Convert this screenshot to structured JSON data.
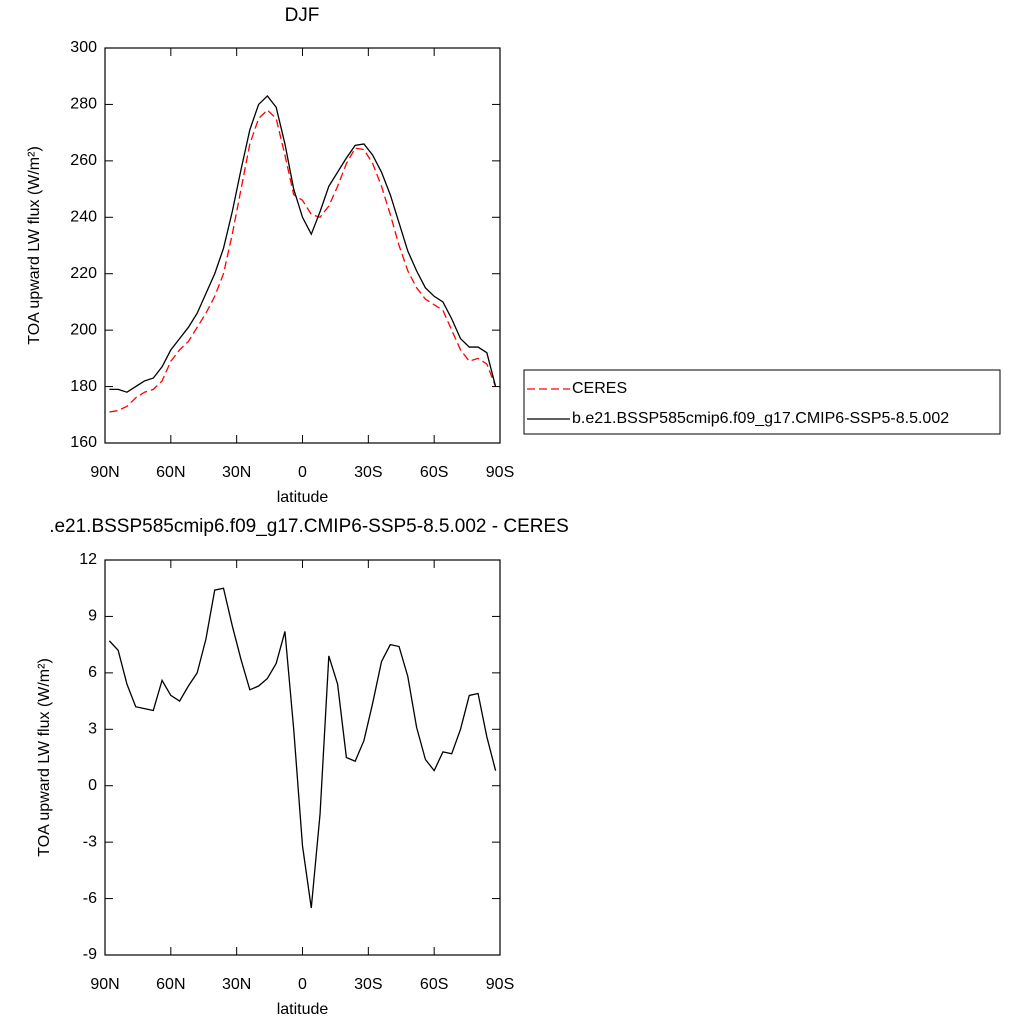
{
  "chart_data": [
    {
      "type": "line",
      "title": "DJF",
      "xlabel": "latitude",
      "ylabel": "TOA upward LW flux (W/m²)",
      "x": [
        88,
        84,
        80,
        76,
        72,
        68,
        64,
        60,
        56,
        52,
        48,
        44,
        40,
        36,
        32,
        28,
        24,
        20,
        16,
        12,
        8,
        4,
        0,
        -4,
        -8,
        -12,
        -16,
        -20,
        -24,
        -28,
        -32,
        -36,
        -40,
        -44,
        -48,
        -52,
        -56,
        -60,
        -64,
        -68,
        -72,
        -76,
        -80,
        -84,
        -88
      ],
      "series": [
        {
          "name": "CERES",
          "color": "#ff0000",
          "dash": true,
          "values": [
            171,
            171.5,
            173,
            176,
            178,
            179,
            182,
            189,
            193,
            196,
            201,
            206,
            212,
            220,
            234,
            250,
            266,
            275,
            278,
            275,
            262,
            248,
            246,
            241,
            240,
            244,
            251,
            259,
            264.5,
            264,
            259,
            251,
            241,
            230,
            221,
            215,
            211,
            209,
            207,
            200,
            193,
            189,
            190,
            188,
            180
          ]
        },
        {
          "name": "b.e21.BSSP585cmip6.f09_g17.CMIP6-SSP5-8.5.002",
          "color": "#000000",
          "dash": false,
          "values": [
            179,
            179,
            178,
            180,
            182,
            183,
            187,
            193,
            197,
            201,
            206,
            213,
            220,
            229,
            242,
            257,
            271,
            280,
            283,
            279,
            266,
            250,
            240,
            234,
            242,
            251,
            256,
            261,
            265.5,
            266,
            262,
            256,
            248,
            238,
            228,
            221,
            215,
            212,
            210,
            204,
            197,
            194,
            194,
            192,
            180
          ]
        }
      ],
      "xlim": [
        90,
        -90
      ],
      "xticks": [
        {
          "value": 90,
          "label": "90N"
        },
        {
          "value": 60,
          "label": "60N"
        },
        {
          "value": 30,
          "label": "30N"
        },
        0,
        {
          "value": -30,
          "label": "30S"
        },
        {
          "value": -60,
          "label": "60S"
        },
        {
          "value": -90,
          "label": "90S"
        }
      ],
      "ylim": [
        160,
        300
      ],
      "yticks": [
        160,
        180,
        200,
        220,
        240,
        260,
        280,
        300
      ]
    },
    {
      "type": "line",
      "title": ".e21.BSSP585cmip6.f09_g17.CMIP6-SSP5-8.5.002 - CERES",
      "xlabel": "latitude",
      "ylabel": "TOA upward LW flux (W/m²)",
      "x": [
        88,
        84,
        80,
        76,
        72,
        68,
        64,
        60,
        56,
        52,
        48,
        44,
        40,
        36,
        32,
        28,
        24,
        20,
        16,
        12,
        8,
        4,
        0,
        -4,
        -8,
        -12,
        -16,
        -20,
        -24,
        -28,
        -32,
        -36,
        -40,
        -44,
        -48,
        -52,
        -56,
        -60,
        -64,
        -68,
        -72,
        -76,
        -80,
        -84,
        -88
      ],
      "series": [
        {
          "color": "#000000",
          "dash": false,
          "values": [
            7.7,
            7.2,
            5.4,
            4.2,
            4.1,
            4.0,
            5.6,
            4.8,
            4.5,
            5.3,
            6.0,
            7.8,
            10.4,
            10.5,
            8.5,
            6.7,
            5.1,
            5.3,
            5.7,
            6.5,
            8.2,
            3.0,
            -3.2,
            -6.5,
            -1.5,
            6.9,
            5.4,
            1.5,
            1.3,
            2.4,
            4.4,
            6.6,
            7.5,
            7.4,
            5.8,
            3.1,
            1.4,
            0.8,
            1.8,
            1.7,
            3.0,
            4.8,
            4.9,
            2.6,
            0.8
          ]
        }
      ],
      "xlim": [
        90,
        -90
      ],
      "xticks": [
        {
          "value": 90,
          "label": "90N"
        },
        {
          "value": 60,
          "label": "60N"
        },
        {
          "value": 30,
          "label": "30N"
        },
        0,
        {
          "value": -30,
          "label": "30S"
        },
        {
          "value": -60,
          "label": "60S"
        },
        {
          "value": -90,
          "label": "90S"
        }
      ],
      "ylim": [
        -9,
        12
      ],
      "yticks": [
        -9,
        -6,
        -3,
        0,
        3,
        6,
        9,
        12
      ]
    }
  ]
}
